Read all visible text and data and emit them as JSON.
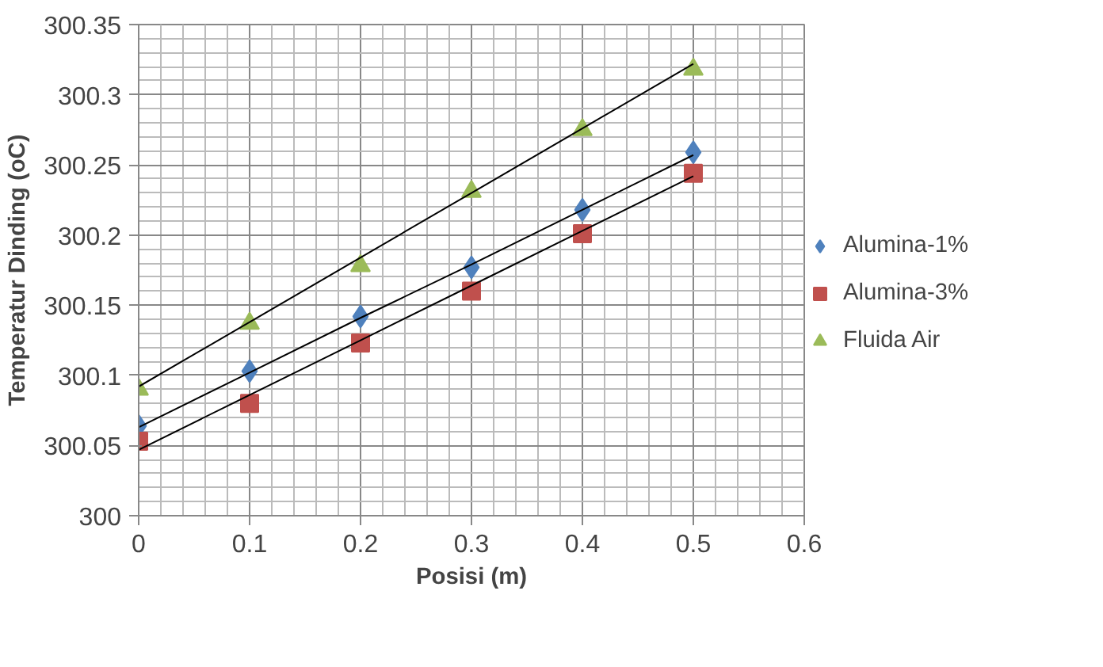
{
  "chart_data": {
    "type": "scatter",
    "xlabel": "Posisi (m)",
    "ylabel": "Temperatur Dinding (oC)",
    "x": [
      0,
      0.1,
      0.2,
      0.3,
      0.4,
      0.5
    ],
    "xlim": [
      0,
      0.6
    ],
    "xticks": [
      0,
      0.1,
      0.2,
      0.3,
      0.4,
      0.5,
      0.6
    ],
    "ylim": [
      300,
      300.35
    ],
    "yticks": [
      300,
      300.05,
      300.1,
      300.15,
      300.2,
      300.25,
      300.3,
      300.35
    ],
    "grid": true,
    "legend": "right",
    "series": [
      {
        "name": "Alumina-1%",
        "color": "#4f81bd",
        "marker": "diamond",
        "values": [
          300.064,
          300.103,
          300.142,
          300.177,
          300.218,
          300.259
        ]
      },
      {
        "name": "Alumina-3%",
        "color": "#c0504d",
        "marker": "square",
        "values": [
          300.053,
          300.08,
          300.123,
          300.16,
          300.201,
          300.244
        ]
      },
      {
        "name": "Fluida Air",
        "color": "#9bbb59",
        "marker": "triangle",
        "values": [
          300.09,
          300.137,
          300.178,
          300.231,
          300.275,
          300.318
        ]
      },
      {
        "type": "line",
        "color": "#000000",
        "values": [
          300.063,
          300.102,
          300.141,
          300.179,
          300.218,
          300.257
        ]
      },
      {
        "type": "line",
        "color": "#000000",
        "values": [
          300.047,
          300.086,
          300.125,
          300.164,
          300.203,
          300.242
        ]
      },
      {
        "type": "line",
        "color": "#000000",
        "values": [
          300.092,
          300.138,
          300.184,
          300.23,
          300.276,
          300.322
        ]
      }
    ]
  }
}
